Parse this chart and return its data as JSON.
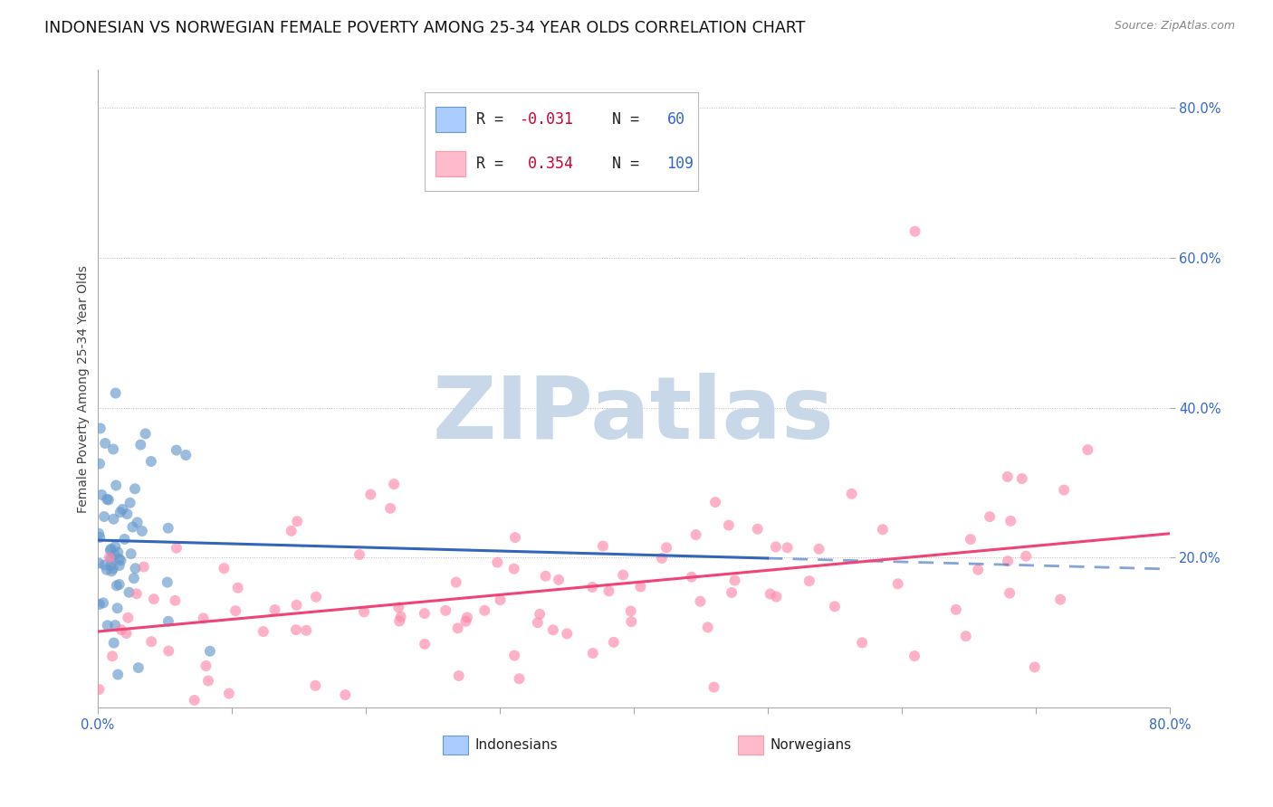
{
  "title": "INDONESIAN VS NORWEGIAN FEMALE POVERTY AMONG 25-34 YEAR OLDS CORRELATION CHART",
  "source": "Source: ZipAtlas.com",
  "ylabel": "Female Poverty Among 25-34 Year Olds",
  "xlim": [
    0.0,
    0.8
  ],
  "ylim": [
    0.0,
    0.85
  ],
  "indonesian_R": -0.031,
  "indonesian_N": 60,
  "norwegian_R": 0.354,
  "norwegian_N": 109,
  "indonesian_color": "#6699CC",
  "norwegian_color": "#FF88AA",
  "indonesian_line_color": "#3366BB",
  "norwegian_line_color": "#EE4477",
  "legend_R_color": "#CC0033",
  "legend_N_color": "#3366CC",
  "watermark": "ZIPatlas",
  "watermark_color": "#C8D8E8",
  "background_color": "#FFFFFF",
  "grid_color": "#BBBBBB",
  "scatter_alpha": 0.65,
  "scatter_size": 75,
  "title_fontsize": 12.5,
  "source_fontsize": 9,
  "axis_label_fontsize": 10,
  "tick_label_fontsize": 10.5,
  "legend_fontsize": 12
}
